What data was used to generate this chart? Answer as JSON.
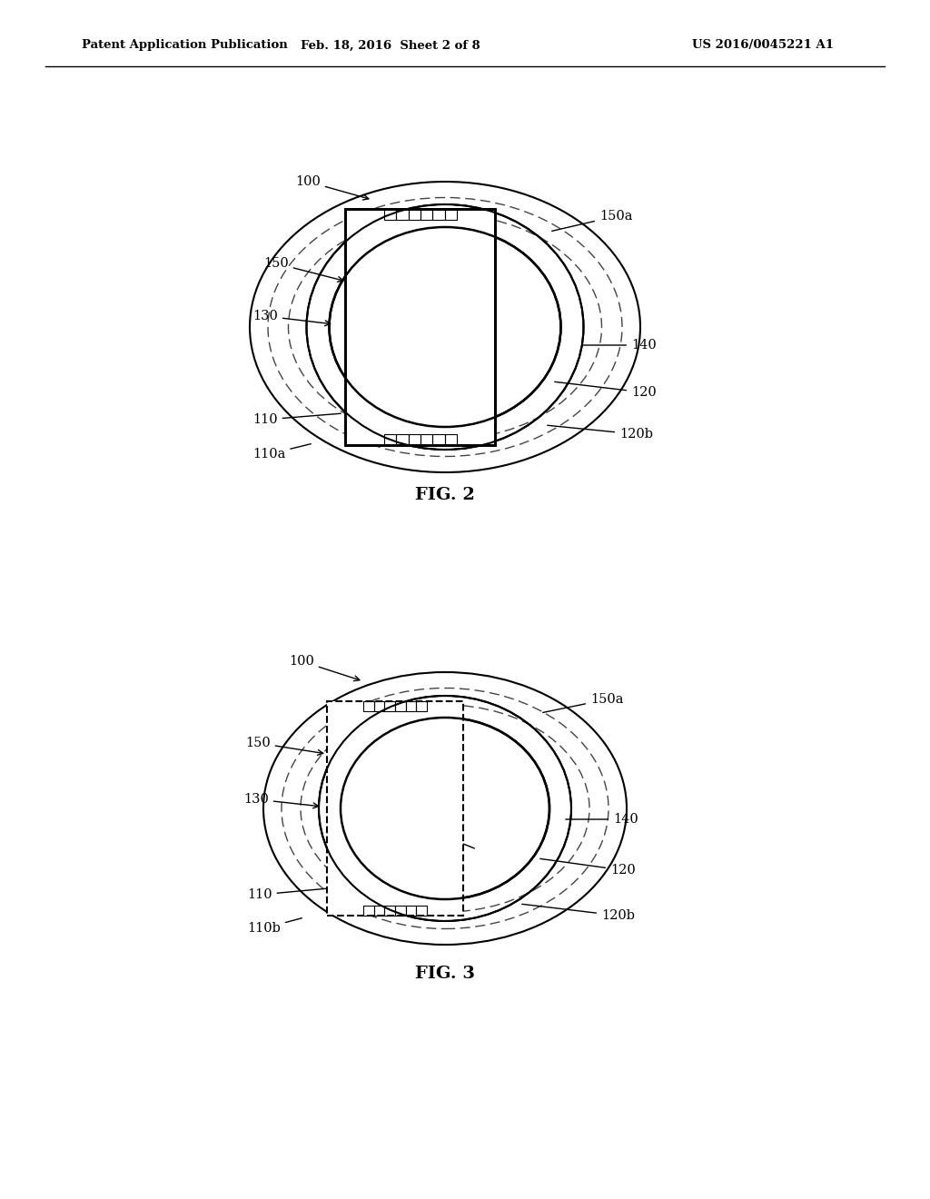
{
  "bg_color": "#ffffff",
  "line_color": "#000000",
  "dashed_color": "#444444",
  "header_text": "Patent Application Publication",
  "header_date": "Feb. 18, 2016  Sheet 2 of 8",
  "header_patent": "US 2016/0045221 A1",
  "fig2_label": "FIG. 2",
  "fig3_label": "FIG. 3"
}
